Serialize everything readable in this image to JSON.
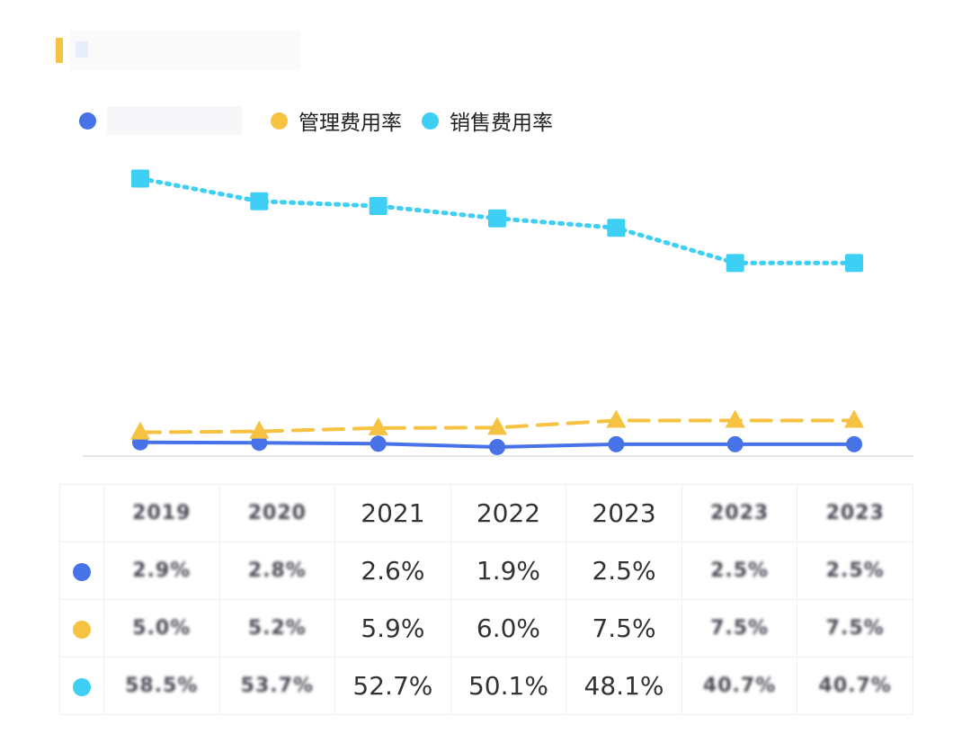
{
  "colors": {
    "blue": "#4772e8",
    "yellow": "#f5c242",
    "cyan": "#3ecff5",
    "title_bar": "#f5c242"
  },
  "legend": [
    {
      "key": "blue",
      "label": ""
    },
    {
      "key": "yellow",
      "label": "管理费用率"
    },
    {
      "key": "cyan",
      "label": "销售费用率"
    }
  ],
  "chart_data": {
    "type": "line",
    "categories": [
      "2019",
      "2020",
      "2021",
      "2022",
      "2023",
      "2023",
      "2023"
    ],
    "series": [
      {
        "name": "",
        "color": "blue",
        "marker": "circle",
        "style": "solid",
        "values": [
          2.9,
          2.8,
          2.6,
          1.9,
          2.5,
          2.5,
          2.5
        ]
      },
      {
        "name": "管理费用率",
        "color": "yellow",
        "marker": "triangle",
        "style": "dashed",
        "values": [
          5.0,
          5.2,
          5.9,
          6.0,
          7.5,
          7.5,
          7.5
        ]
      },
      {
        "name": "销售费用率",
        "color": "cyan",
        "marker": "square",
        "style": "dotted",
        "values": [
          58.5,
          53.7,
          52.7,
          50.1,
          48.1,
          40.7,
          40.7
        ]
      }
    ],
    "grid": false,
    "legend_position": "top-left"
  },
  "table": {
    "headers": [
      "2019",
      "2020",
      "2021",
      "2022",
      "2023",
      "2023",
      "2023"
    ],
    "rows": [
      {
        "key": "blue",
        "cells": [
          "2.9%",
          "2.8%",
          "2.6%",
          "1.9%",
          "2.5%",
          "2.5%",
          "2.5%"
        ]
      },
      {
        "key": "yellow",
        "cells": [
          "5.0%",
          "5.2%",
          "5.9%",
          "6.0%",
          "7.5%",
          "7.5%",
          "7.5%"
        ]
      },
      {
        "key": "cyan",
        "cells": [
          "58.5%",
          "53.7%",
          "52.7%",
          "50.1%",
          "48.1%",
          "40.7%",
          "40.7%"
        ]
      }
    ],
    "blurred_columns": [
      0,
      1,
      5,
      6
    ]
  }
}
